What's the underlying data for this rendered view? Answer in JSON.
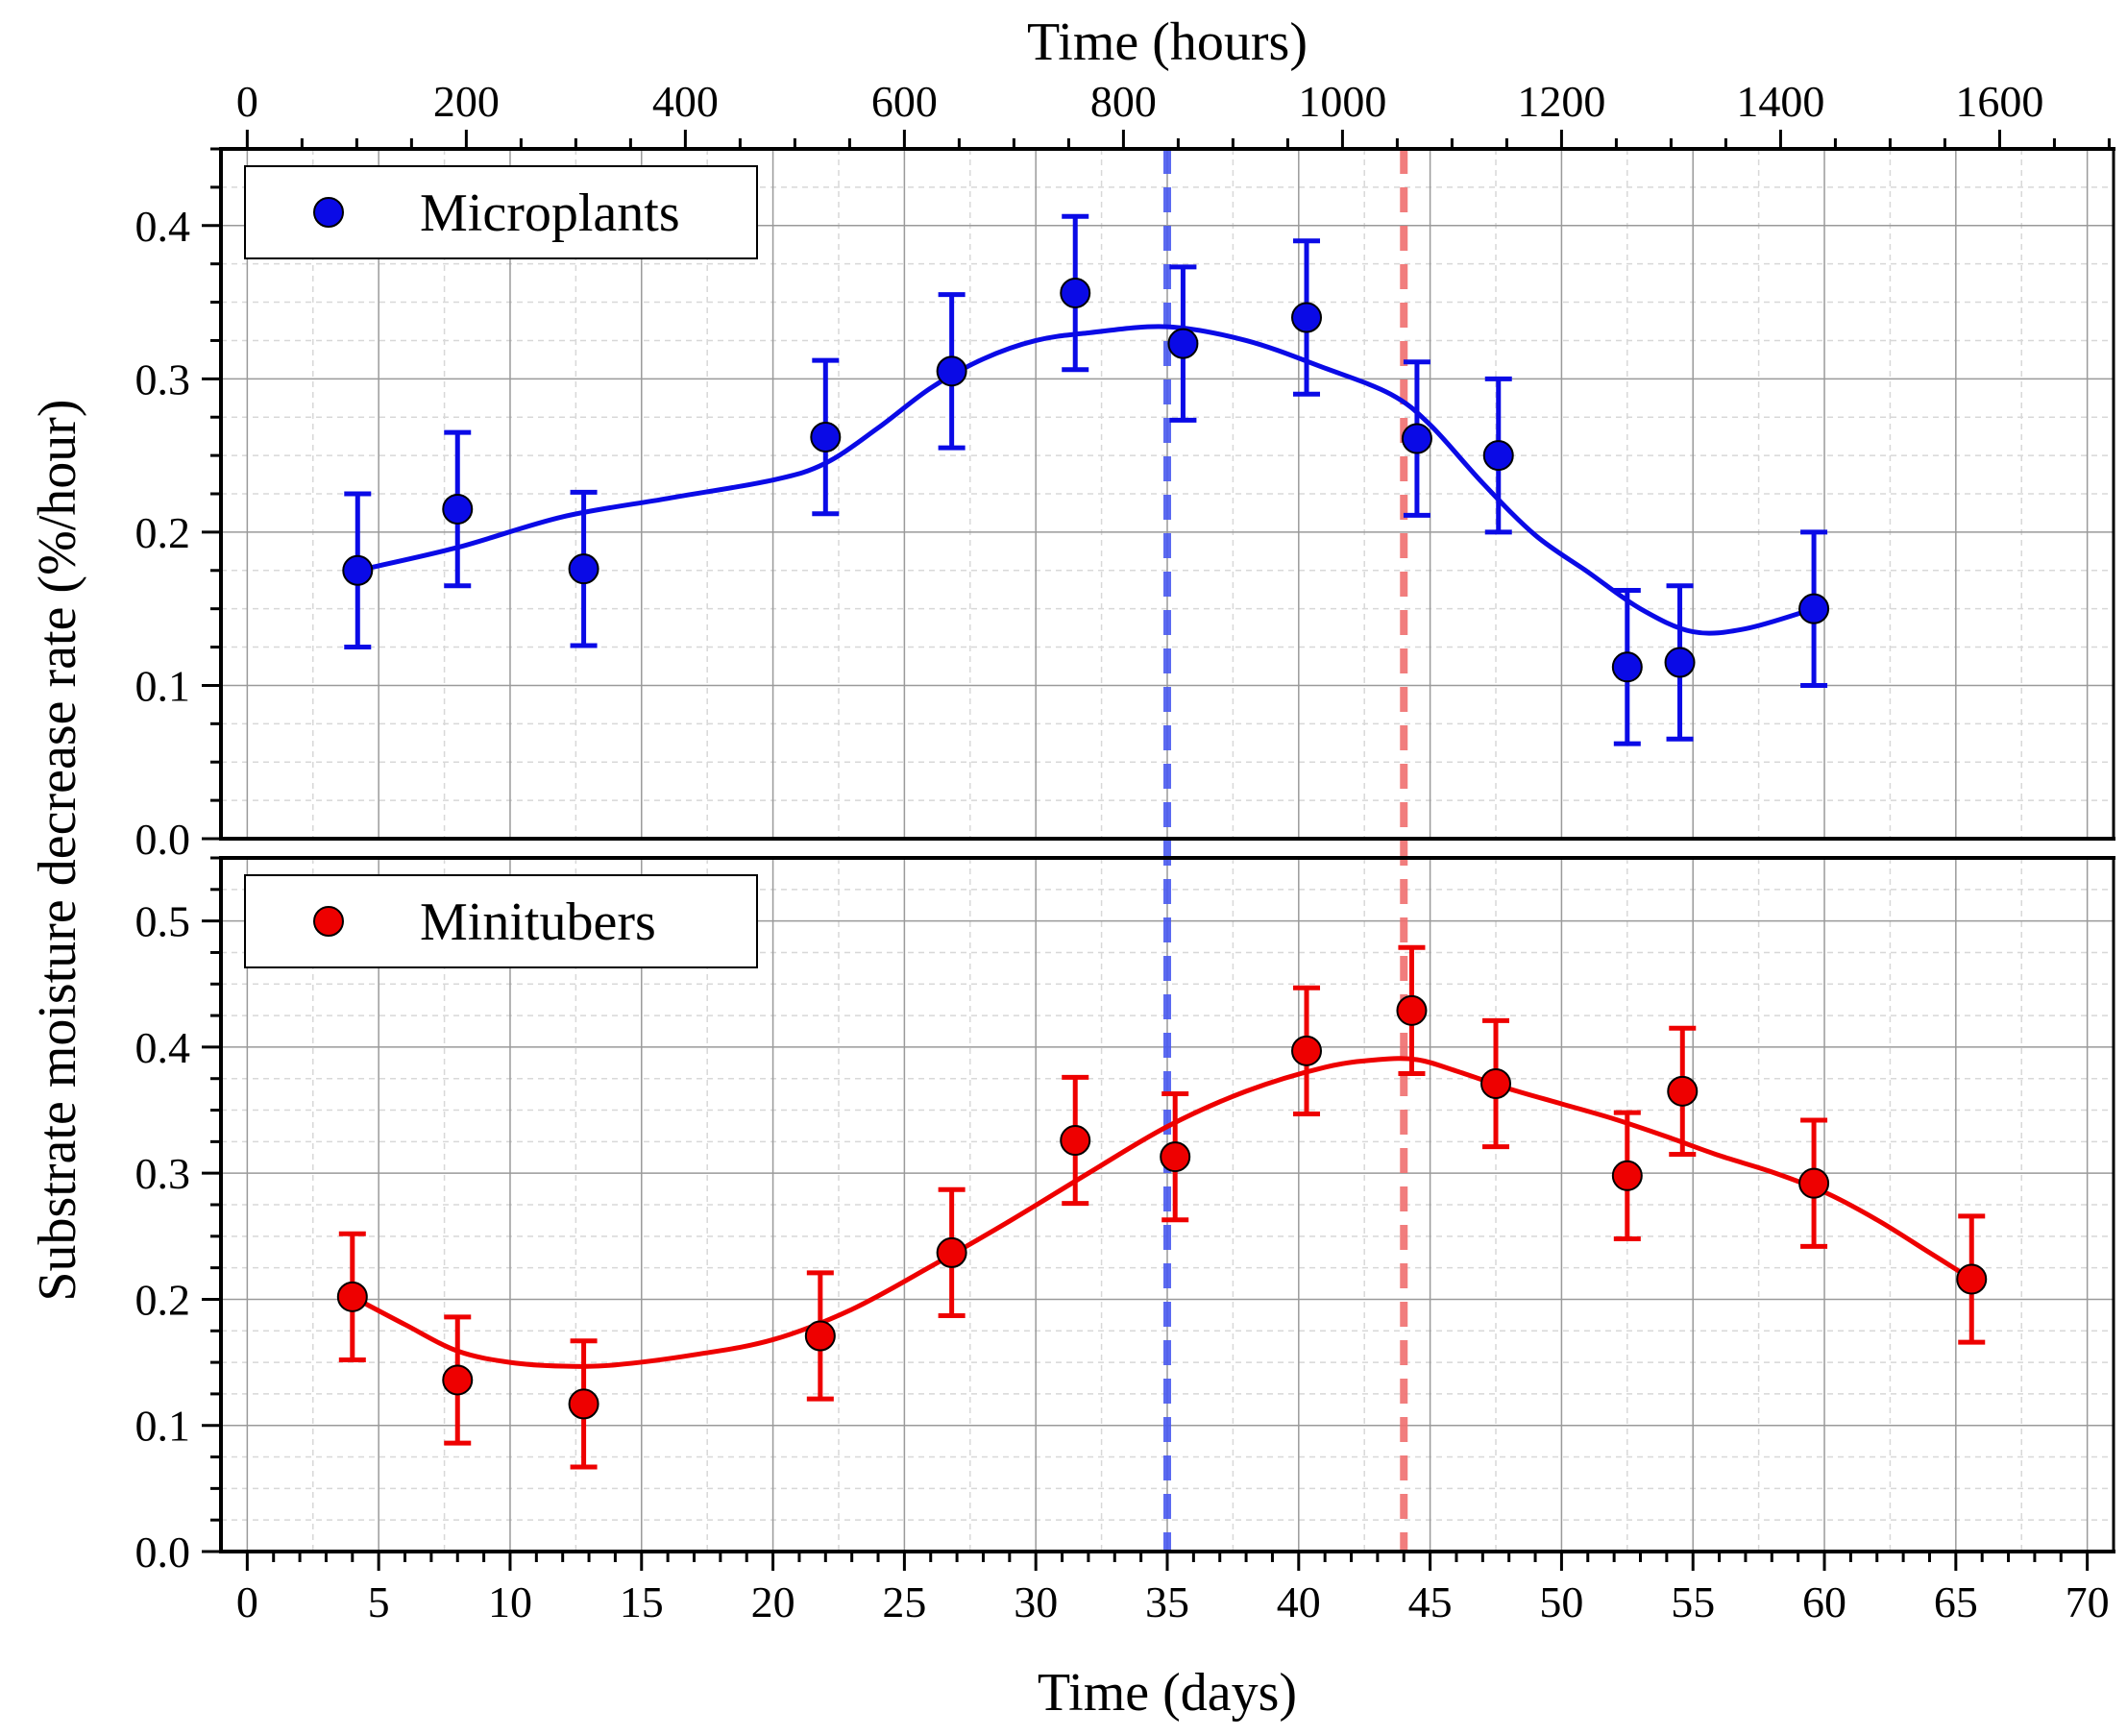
{
  "chart_data": {
    "type": "scatter",
    "layout": "two stacked panels sharing x axis",
    "ylabel": "Substrate moisture decrease rate (%/hour)",
    "xlabel_bottom": "Time (days)",
    "xlabel_top": "Time (hours)",
    "x_ticks_days": [
      "0",
      "5",
      "10",
      "15",
      "20",
      "25",
      "30",
      "35",
      "40",
      "45",
      "50",
      "55",
      "60",
      "65",
      "70"
    ],
    "x_ticks_hours": [
      "0",
      "200",
      "400",
      "600",
      "800",
      "1000",
      "1200",
      "1400",
      "1600"
    ],
    "xlim_days": [
      -1,
      71
    ],
    "xlim_hours": [
      -24,
      1704
    ],
    "vlines": [
      {
        "x_days": 35,
        "color": "#4a5af0",
        "style": "dashed"
      },
      {
        "x_days": 44,
        "color": "#f07070",
        "style": "dashed"
      }
    ],
    "panels": [
      {
        "name": "Microplants",
        "legend": "Microplants",
        "color": "#0a0ae6",
        "ylim": [
          0,
          0.45
        ],
        "y_ticks": [
          "0.0",
          "0.1",
          "0.2",
          "0.3",
          "0.4"
        ],
        "points": [
          {
            "x": 4.2,
            "y": 0.175,
            "err": 0.05
          },
          {
            "x": 8.0,
            "y": 0.215,
            "err": 0.05
          },
          {
            "x": 12.8,
            "y": 0.176,
            "err": 0.05
          },
          {
            "x": 22.0,
            "y": 0.262,
            "err": 0.05
          },
          {
            "x": 26.8,
            "y": 0.305,
            "err": 0.05
          },
          {
            "x": 31.5,
            "y": 0.356,
            "err": 0.05
          },
          {
            "x": 35.6,
            "y": 0.323,
            "err": 0.05
          },
          {
            "x": 40.3,
            "y": 0.34,
            "err": 0.05
          },
          {
            "x": 44.5,
            "y": 0.261,
            "err": 0.05
          },
          {
            "x": 47.6,
            "y": 0.25,
            "err": 0.05
          },
          {
            "x": 52.5,
            "y": 0.112,
            "err": 0.05
          },
          {
            "x": 54.5,
            "y": 0.115,
            "err": 0.05
          },
          {
            "x": 59.6,
            "y": 0.15,
            "err": 0.05
          }
        ],
        "fit": [
          [
            4.2,
            0.175
          ],
          [
            8,
            0.19
          ],
          [
            12,
            0.21
          ],
          [
            16,
            0.222
          ],
          [
            20,
            0.234
          ],
          [
            22,
            0.245
          ],
          [
            24,
            0.268
          ],
          [
            26,
            0.294
          ],
          [
            28,
            0.313
          ],
          [
            30,
            0.325
          ],
          [
            32,
            0.33
          ],
          [
            35,
            0.334
          ],
          [
            38,
            0.325
          ],
          [
            41,
            0.307
          ],
          [
            43.5,
            0.29
          ],
          [
            45,
            0.27
          ],
          [
            47,
            0.232
          ],
          [
            49,
            0.198
          ],
          [
            51,
            0.174
          ],
          [
            53,
            0.15
          ],
          [
            55,
            0.135
          ],
          [
            57,
            0.137
          ],
          [
            59.6,
            0.15
          ]
        ]
      },
      {
        "name": "Minitubers",
        "legend": "Minitubers",
        "color": "#ee0000",
        "ylim": [
          0,
          0.55
        ],
        "y_ticks": [
          "0.0",
          "0.1",
          "0.2",
          "0.3",
          "0.4",
          "0.5"
        ],
        "points": [
          {
            "x": 4.0,
            "y": 0.202,
            "err": 0.05
          },
          {
            "x": 8.0,
            "y": 0.136,
            "err": 0.05
          },
          {
            "x": 12.8,
            "y": 0.117,
            "err": 0.05
          },
          {
            "x": 21.8,
            "y": 0.171,
            "err": 0.05
          },
          {
            "x": 26.8,
            "y": 0.237,
            "err": 0.05
          },
          {
            "x": 31.5,
            "y": 0.326,
            "err": 0.05
          },
          {
            "x": 35.3,
            "y": 0.313,
            "err": 0.05
          },
          {
            "x": 40.3,
            "y": 0.397,
            "err": 0.05
          },
          {
            "x": 44.3,
            "y": 0.429,
            "err": 0.05
          },
          {
            "x": 47.5,
            "y": 0.371,
            "err": 0.05
          },
          {
            "x": 52.5,
            "y": 0.298,
            "err": 0.05
          },
          {
            "x": 54.6,
            "y": 0.365,
            "err": 0.05
          },
          {
            "x": 59.6,
            "y": 0.292,
            "err": 0.05
          },
          {
            "x": 65.6,
            "y": 0.216,
            "err": 0.05
          }
        ],
        "fit": [
          [
            4,
            0.202
          ],
          [
            6,
            0.18
          ],
          [
            8,
            0.159
          ],
          [
            10,
            0.15
          ],
          [
            12,
            0.147
          ],
          [
            14,
            0.148
          ],
          [
            17,
            0.156
          ],
          [
            20,
            0.168
          ],
          [
            23,
            0.192
          ],
          [
            26,
            0.226
          ],
          [
            29,
            0.262
          ],
          [
            32,
            0.3
          ],
          [
            35,
            0.337
          ],
          [
            38,
            0.365
          ],
          [
            41,
            0.384
          ],
          [
            43,
            0.39
          ],
          [
            44.5,
            0.39
          ],
          [
            46,
            0.381
          ],
          [
            48,
            0.367
          ],
          [
            50,
            0.355
          ],
          [
            52,
            0.343
          ],
          [
            54,
            0.329
          ],
          [
            56,
            0.314
          ],
          [
            58,
            0.301
          ],
          [
            60,
            0.285
          ],
          [
            62,
            0.263
          ],
          [
            64,
            0.237
          ],
          [
            65.6,
            0.216
          ]
        ]
      }
    ]
  }
}
